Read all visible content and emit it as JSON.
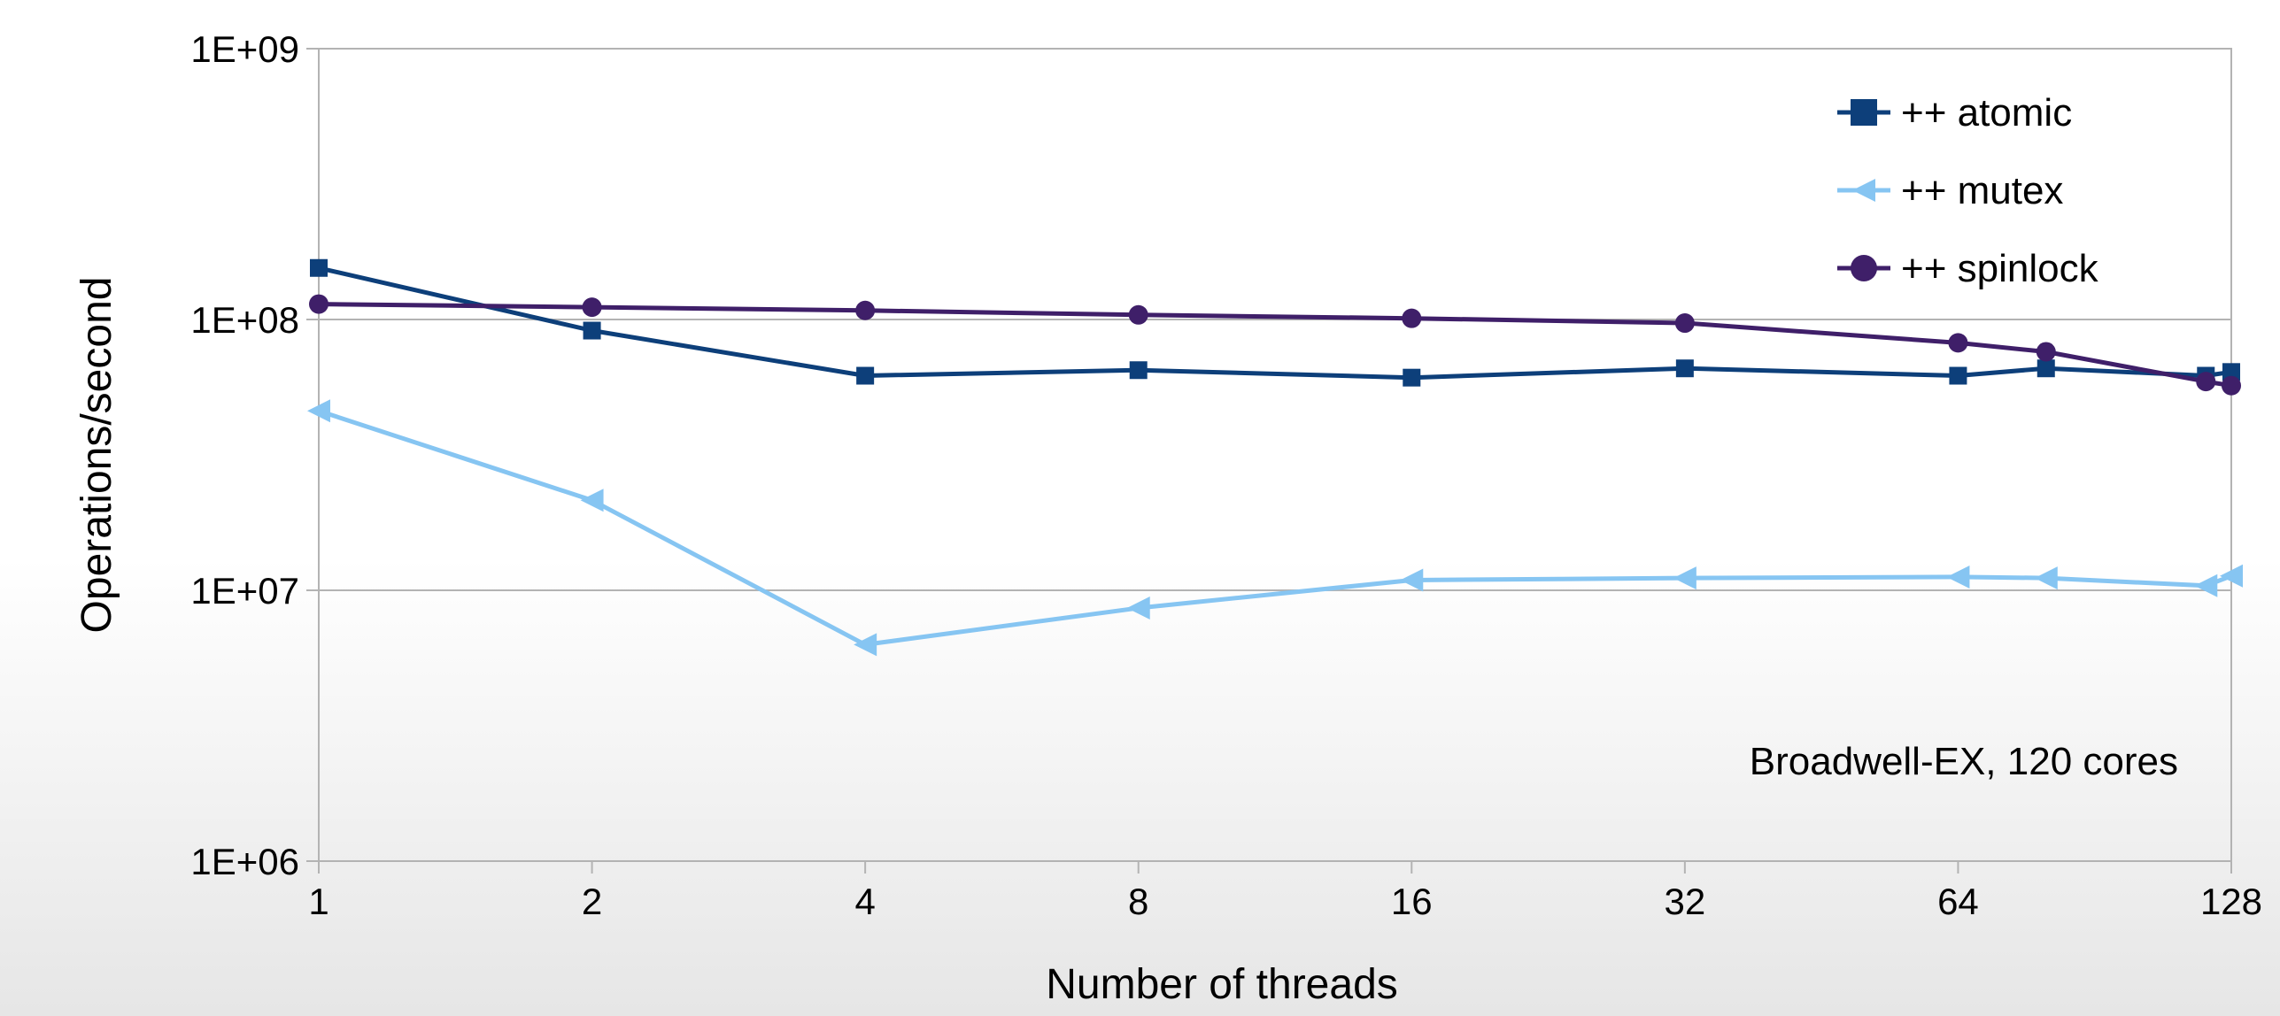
{
  "chart_data": {
    "type": "line",
    "xlabel": "Number of threads",
    "ylabel": "Operations/second",
    "x_scale": "log2",
    "y_scale": "log10",
    "xlim": [
      1,
      128
    ],
    "ylim": [
      1000000,
      1000000000
    ],
    "x_ticks": [
      {
        "value": 1,
        "label": "1"
      },
      {
        "value": 2,
        "label": "2"
      },
      {
        "value": 4,
        "label": "4"
      },
      {
        "value": 8,
        "label": "8"
      },
      {
        "value": 16,
        "label": "16"
      },
      {
        "value": 32,
        "label": "32"
      },
      {
        "value": 64,
        "label": "64"
      },
      {
        "value": 128,
        "label": "128"
      }
    ],
    "y_ticks": [
      {
        "value": 1000000,
        "label": "1E+06"
      },
      {
        "value": 10000000,
        "label": "1E+07"
      },
      {
        "value": 100000000,
        "label": "1E+08"
      },
      {
        "value": 1000000000,
        "label": "1E+09"
      }
    ],
    "grid": "horizontal",
    "legend_position": "top-right",
    "annotation": "Broadwell-EX, 120 cores",
    "series": [
      {
        "name": "++ atomic",
        "color": "#0d3f7a",
        "marker": "square",
        "points": [
          {
            "x": 1,
            "y": 155000000
          },
          {
            "x": 2,
            "y": 91000000
          },
          {
            "x": 4,
            "y": 62000000
          },
          {
            "x": 8,
            "y": 65000000
          },
          {
            "x": 16,
            "y": 61000000
          },
          {
            "x": 32,
            "y": 66000000
          },
          {
            "x": 64,
            "y": 62000000
          },
          {
            "x": 80,
            "y": 66000000
          },
          {
            "x": 120,
            "y": 62000000
          },
          {
            "x": 128,
            "y": 64000000
          }
        ]
      },
      {
        "name": "++ mutex",
        "color": "#86c5f2",
        "marker": "triangle-left",
        "points": [
          {
            "x": 1,
            "y": 46000000
          },
          {
            "x": 2,
            "y": 21500000
          },
          {
            "x": 4,
            "y": 6300000
          },
          {
            "x": 8,
            "y": 8600000
          },
          {
            "x": 16,
            "y": 10900000
          },
          {
            "x": 32,
            "y": 11100000
          },
          {
            "x": 64,
            "y": 11200000
          },
          {
            "x": 80,
            "y": 11100000
          },
          {
            "x": 120,
            "y": 10400000
          },
          {
            "x": 128,
            "y": 11300000
          }
        ]
      },
      {
        "name": "++ spinlock",
        "color": "#3f1f69",
        "marker": "circle",
        "points": [
          {
            "x": 1,
            "y": 114000000
          },
          {
            "x": 2,
            "y": 111000000
          },
          {
            "x": 4,
            "y": 108000000
          },
          {
            "x": 8,
            "y": 104000000
          },
          {
            "x": 16,
            "y": 101000000
          },
          {
            "x": 32,
            "y": 97000000
          },
          {
            "x": 64,
            "y": 82000000
          },
          {
            "x": 80,
            "y": 76000000
          },
          {
            "x": 120,
            "y": 59000000
          },
          {
            "x": 128,
            "y": 57000000
          }
        ]
      }
    ]
  }
}
